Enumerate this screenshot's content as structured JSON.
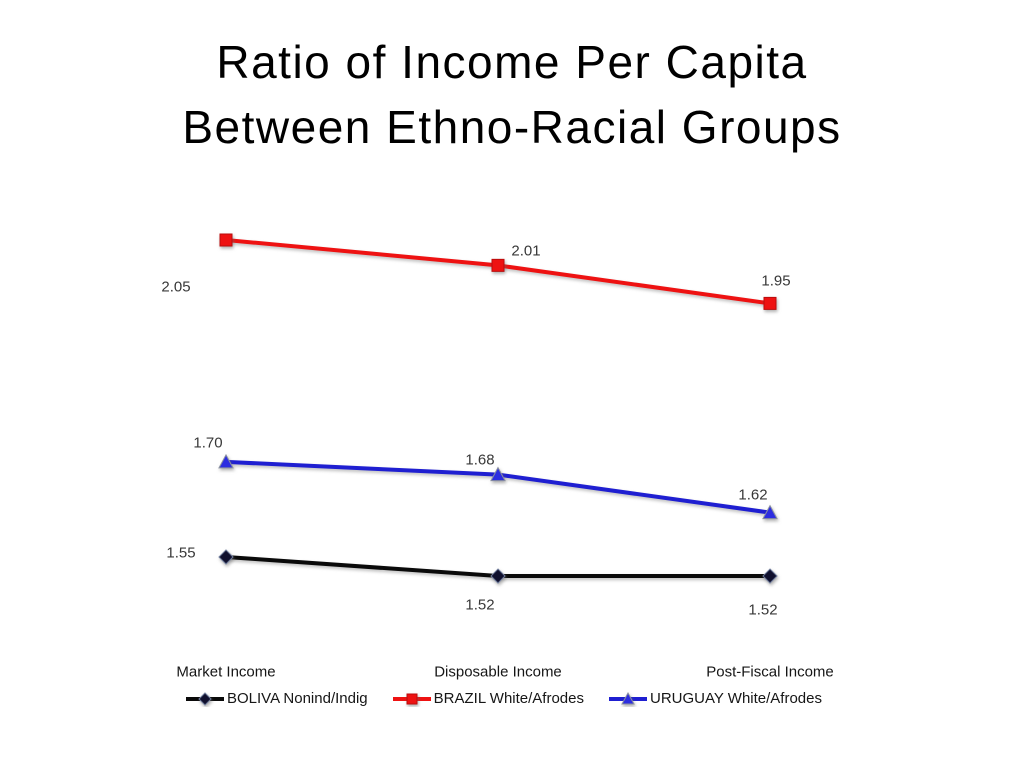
{
  "slide": {
    "title_line1": "Ratio of Income Per Capita",
    "title_line2": "Between Ethno-Racial Groups"
  },
  "chart_data": {
    "type": "line",
    "title": "Ratio of Income Per Capita Between Ethno-Racial Groups",
    "categories": [
      "Market Income",
      "Disposable Income",
      "Post-Fiscal Income"
    ],
    "series": [
      {
        "id": "boliva",
        "name": "BOLIVA Nonind/Indig",
        "color": "#0a0a0a",
        "marker": "diamond",
        "marker_color": "#10102e",
        "marker_stroke": "#6f7b9b",
        "values": [
          1.55,
          1.52,
          1.52
        ],
        "labels": [
          "1.55",
          "1.52",
          "1.52"
        ]
      },
      {
        "id": "brazil",
        "name": "BRAZIL White/Afrodes",
        "color": "#ee1212",
        "marker": "square",
        "marker_color": "#ee1212",
        "marker_stroke": "#bb0c0c",
        "values": [
          2.05,
          2.01,
          1.95
        ],
        "labels": [
          "2.05",
          "2.01",
          "1.95"
        ]
      },
      {
        "id": "uruguay",
        "name": "URUGUAY White/Afrodes",
        "color": "#1f1fd1",
        "marker": "triangle",
        "marker_color": "#2d2de0",
        "marker_stroke": "#8a90a0",
        "values": [
          1.7,
          1.68,
          1.62
        ],
        "labels": [
          "1.70",
          "1.68",
          "1.62"
        ]
      }
    ],
    "ylim": [
      1.45,
      2.1
    ],
    "grid": false,
    "axes_visible": false,
    "data_labels": true,
    "legend_position": "bottom"
  }
}
